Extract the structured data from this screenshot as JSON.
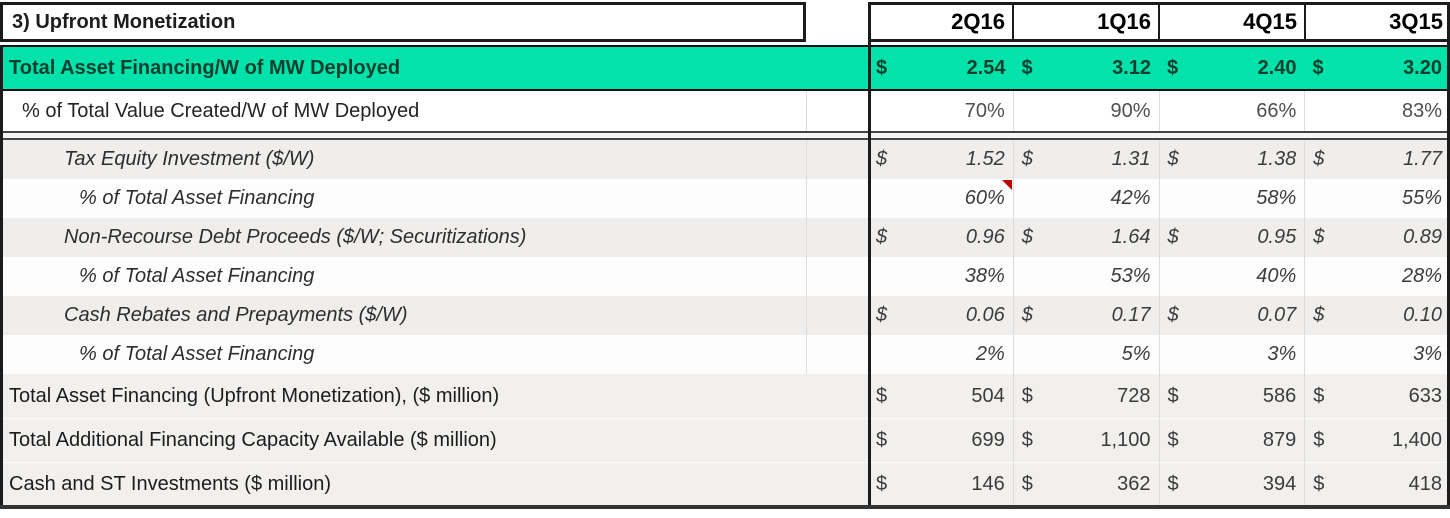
{
  "colors": {
    "highlight_teal": "#04e2ab",
    "note_marker_red": "#c00000",
    "band_gray": "#efeeec",
    "summary_gray": "#f1f0ee"
  },
  "table": {
    "title": "3) Upfront Monetization",
    "currency_symbol": "$",
    "quarters": [
      "2Q16",
      "1Q16",
      "4Q15",
      "3Q15"
    ],
    "rows": [
      {
        "label": "Total Asset Financing/W of MW Deployed",
        "style": "highlight",
        "currency": true,
        "values": [
          "2.54",
          "3.12",
          "2.40",
          "3.20"
        ]
      },
      {
        "label": "% of Total Value Created/W of MW Deployed",
        "style": "percent",
        "currency": false,
        "values": [
          "70%",
          "90%",
          "66%",
          "83%"
        ]
      },
      {
        "label": "Tax Equity Investment ($/W)",
        "style": "detail-italic",
        "currency": true,
        "values": [
          "1.52",
          "1.31",
          "1.38",
          "1.77"
        ]
      },
      {
        "label": "% of Total Asset Financing",
        "style": "detail-italic-percent",
        "currency": false,
        "values": [
          "60%",
          "42%",
          "58%",
          "55%"
        ],
        "note_marker_on": "2Q16"
      },
      {
        "label": "Non-Recourse Debt Proceeds ($/W; Securitizations)",
        "style": "detail-italic",
        "currency": true,
        "values": [
          "0.96",
          "1.64",
          "0.95",
          "0.89"
        ]
      },
      {
        "label": "% of Total Asset Financing",
        "style": "detail-italic-percent",
        "currency": false,
        "values": [
          "38%",
          "53%",
          "40%",
          "28%"
        ]
      },
      {
        "label": "Cash Rebates and Prepayments ($/W)",
        "style": "detail-italic",
        "currency": true,
        "values": [
          "0.06",
          "0.17",
          "0.07",
          "0.10"
        ]
      },
      {
        "label": "% of Total Asset Financing",
        "style": "detail-italic-percent",
        "currency": false,
        "values": [
          "2%",
          "5%",
          "3%",
          "3%"
        ]
      },
      {
        "label": "Total Asset Financing (Upfront Monetization), ($ million)",
        "style": "summary",
        "currency": true,
        "values": [
          "504",
          "728",
          "586",
          "633"
        ]
      },
      {
        "label": "Total Additional Financing Capacity Available ($ million)",
        "style": "summary",
        "currency": true,
        "values": [
          "699",
          "1,100",
          "879",
          "1,400"
        ]
      },
      {
        "label": "Cash and ST Investments ($ million)",
        "style": "summary",
        "currency": true,
        "values": [
          "146",
          "362",
          "394",
          "418"
        ]
      }
    ]
  }
}
